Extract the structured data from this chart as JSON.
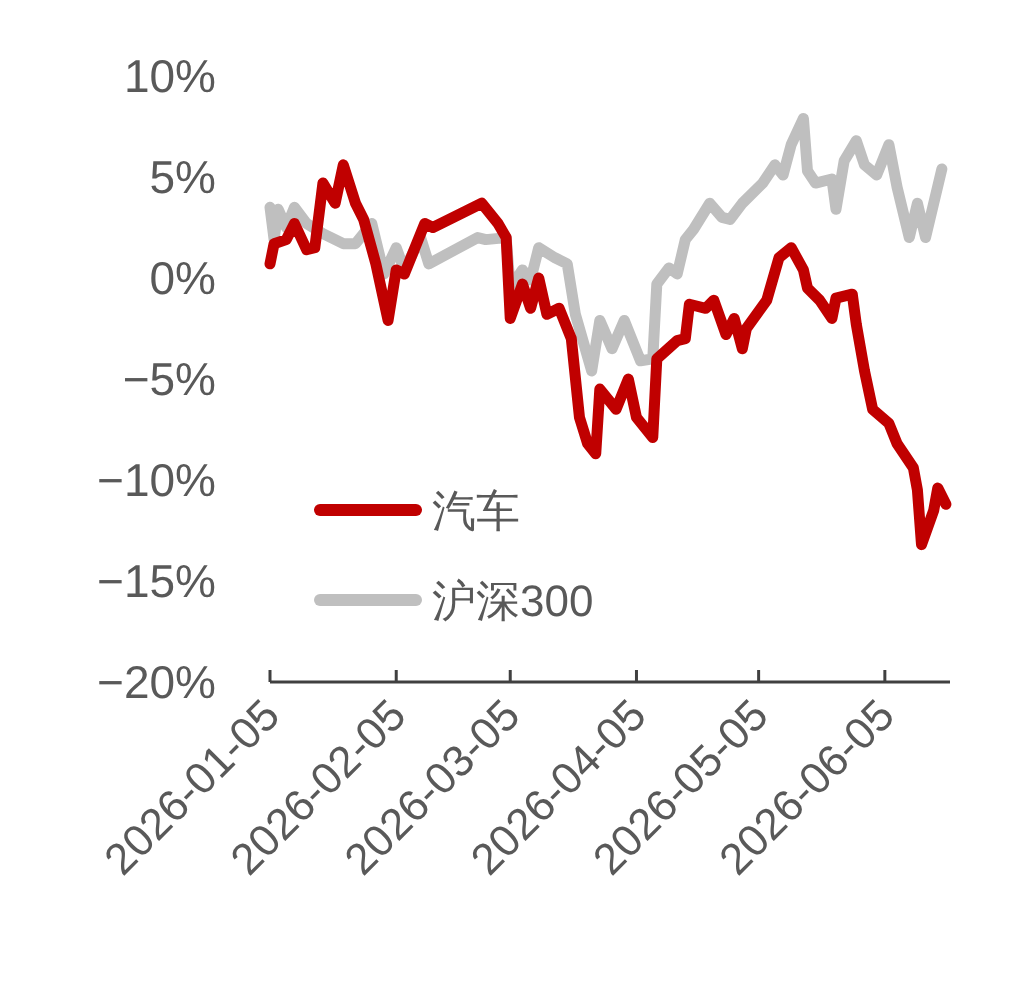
{
  "chart_data": {
    "type": "line",
    "xlim": [
      "2026-01-05",
      "2026-06-21"
    ],
    "ylim": [
      -20,
      10
    ],
    "xticks": [
      {
        "value": "2026-01-05",
        "label": "2026-01-05"
      },
      {
        "value": "2026-02-05",
        "label": "2026-02-05"
      },
      {
        "value": "2026-03-05",
        "label": "2026-03-05"
      },
      {
        "value": "2026-04-05",
        "label": "2026-04-05"
      },
      {
        "value": "2026-05-05",
        "label": "2026-05-05"
      },
      {
        "value": "2026-06-05",
        "label": "2026-06-05"
      }
    ],
    "yticks": [
      {
        "value": 10,
        "label": "10%"
      },
      {
        "value": 5,
        "label": "5%"
      },
      {
        "value": 0,
        "label": "0%"
      },
      {
        "value": -5,
        "label": "−5%"
      },
      {
        "value": -10,
        "label": "−10%"
      },
      {
        "value": -15,
        "label": "−15%"
      },
      {
        "value": -20,
        "label": "−20%"
      }
    ],
    "legend": "bottom left",
    "series": [
      {
        "name": "汽车",
        "color": "#c00000",
        "x": [
          "2026-01-05",
          "2026-01-06",
          "2026-01-09",
          "2026-01-11",
          "2026-01-14",
          "2026-01-16",
          "2026-01-18",
          "2026-01-21",
          "2026-01-23",
          "2026-01-26",
          "2026-01-28",
          "2026-01-31",
          "2026-02-03",
          "2026-02-05",
          "2026-02-07",
          "2026-02-12",
          "2026-02-14",
          "2026-02-26",
          "2026-03-02",
          "2026-03-04",
          "2026-03-05",
          "2026-03-08",
          "2026-03-10",
          "2026-03-12",
          "2026-03-14",
          "2026-03-17",
          "2026-03-20",
          "2026-03-22",
          "2026-03-24",
          "2026-03-26",
          "2026-03-27",
          "2026-03-31",
          "2026-04-03",
          "2026-04-05",
          "2026-04-09",
          "2026-04-10",
          "2026-04-15",
          "2026-04-17",
          "2026-04-18",
          "2026-04-22",
          "2026-04-24",
          "2026-04-27",
          "2026-04-29",
          "2026-05-01",
          "2026-05-02",
          "2026-05-07",
          "2026-05-10",
          "2026-05-13",
          "2026-05-16",
          "2026-05-17",
          "2026-05-20",
          "2026-05-23",
          "2026-05-24",
          "2026-05-28",
          "2026-05-29",
          "2026-05-31",
          "2026-06-02",
          "2026-06-06",
          "2026-06-08",
          "2026-06-12",
          "2026-06-13",
          "2026-06-14",
          "2026-06-17",
          "2026-06-18",
          "2026-06-20"
        ],
        "values": [
          0.7,
          1.7,
          1.9,
          2.7,
          1.4,
          1.5,
          4.7,
          3.7,
          5.6,
          3.7,
          2.9,
          0.7,
          -2.1,
          0.4,
          0.2,
          2.7,
          2.5,
          3.7,
          2.7,
          2.0,
          -2.0,
          -0.3,
          -1.5,
          0,
          -1.8,
          -1.5,
          -3.0,
          -6.9,
          -8.2,
          -8.7,
          -5.5,
          -6.5,
          -5.0,
          -6.9,
          -7.9,
          -4.0,
          -3.1,
          -3.0,
          -1.3,
          -1.5,
          -1.1,
          -2.8,
          -2.0,
          -3.5,
          -2.5,
          -1.1,
          1.0,
          1.5,
          0.4,
          -0.5,
          -1.1,
          -2.0,
          -1.0,
          -0.8,
          -2.3,
          -4.6,
          -6.5,
          -7.2,
          -8.2,
          -9.4,
          -10.5,
          -13.2,
          -11.5,
          -10.4,
          -11.2
        ]
      },
      {
        "name": "沪深300",
        "color": "#bfbfbf",
        "x": [
          "2026-01-05",
          "2026-01-06",
          "2026-01-07",
          "2026-01-09",
          "2026-01-11",
          "2026-01-14",
          "2026-01-18",
          "2026-01-23",
          "2026-01-26",
          "2026-01-30",
          "2026-02-02",
          "2026-02-05",
          "2026-02-07",
          "2026-02-11",
          "2026-02-13",
          "2026-02-25",
          "2026-02-27",
          "2026-03-04",
          "2026-03-05",
          "2026-03-08",
          "2026-03-10",
          "2026-03-12",
          "2026-03-16",
          "2026-03-19",
          "2026-03-21",
          "2026-03-25",
          "2026-03-27",
          "2026-03-30",
          "2026-04-02",
          "2026-04-05",
          "2026-04-06",
          "2026-04-09",
          "2026-04-10",
          "2026-04-13",
          "2026-04-15",
          "2026-04-17",
          "2026-04-19",
          "2026-04-23",
          "2026-04-26",
          "2026-04-28",
          "2026-05-01",
          "2026-05-06",
          "2026-05-09",
          "2026-05-11",
          "2026-05-13",
          "2026-05-16",
          "2026-05-17",
          "2026-05-19",
          "2026-05-23",
          "2026-05-24",
          "2026-05-26",
          "2026-05-29",
          "2026-05-31",
          "2026-06-03",
          "2026-06-06",
          "2026-06-08",
          "2026-06-11",
          "2026-06-13",
          "2026-06-15",
          "2026-06-19"
        ],
        "values": [
          3.5,
          1.9,
          3.4,
          2.5,
          3.5,
          2.7,
          2.2,
          1.7,
          1.7,
          2.7,
          0.2,
          1.5,
          0.4,
          2.0,
          0.7,
          2.0,
          1.9,
          2.0,
          -0.5,
          0.4,
          -0.1,
          1.5,
          1.0,
          0.7,
          -1.8,
          -4.6,
          -2.1,
          -3.5,
          -2.1,
          -3.6,
          -4.1,
          -4.0,
          -0.3,
          0.5,
          0.2,
          1.9,
          2.4,
          3.7,
          3.0,
          2.9,
          3.7,
          4.7,
          5.6,
          5.1,
          6.6,
          7.9,
          5.3,
          4.7,
          4.9,
          3.4,
          5.8,
          6.8,
          5.6,
          5.1,
          6.6,
          4.5,
          2.0,
          3.7,
          2.0,
          5.4
        ]
      }
    ]
  }
}
